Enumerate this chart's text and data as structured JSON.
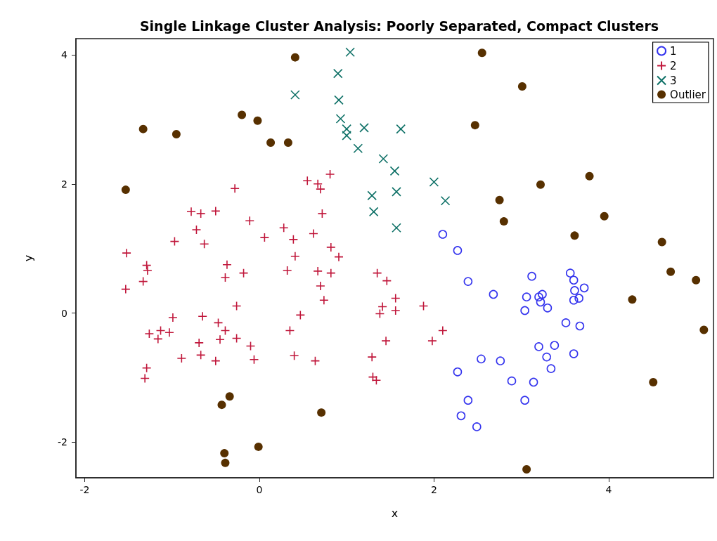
{
  "chart_data": {
    "type": "scatter",
    "title": "Single Linkage Cluster Analysis: Poorly Separated, Compact Clusters",
    "xlabel": "x",
    "ylabel": "y",
    "xlim": [
      -2.1,
      5.2
    ],
    "ylim": [
      -2.55,
      4.25
    ],
    "xticks": [
      -2,
      0,
      2,
      4
    ],
    "yticks": [
      -2,
      0,
      2,
      4
    ],
    "grid": false,
    "legend": "top right",
    "series": [
      {
        "name": "1",
        "color": "#3333ee",
        "marker": "circle_open",
        "x": [
          2.1,
          2.27,
          2.39,
          2.68,
          3.12,
          3.06,
          3.04,
          3.2,
          3.24,
          3.22,
          3.3,
          3.56,
          3.6,
          3.61,
          3.72,
          3.66,
          3.6,
          3.51,
          3.67,
          3.2,
          3.38,
          3.29,
          3.34,
          3.6,
          2.54,
          2.76,
          2.27,
          2.89,
          3.14,
          2.39,
          3.04,
          2.31,
          2.49
        ],
        "values": [
          1.22,
          0.97,
          0.49,
          0.29,
          0.57,
          0.25,
          0.04,
          0.25,
          0.29,
          0.17,
          0.08,
          0.62,
          0.51,
          0.35,
          0.39,
          0.23,
          0.2,
          -0.15,
          -0.2,
          -0.52,
          -0.5,
          -0.68,
          -0.86,
          -0.63,
          -0.71,
          -0.74,
          -0.91,
          -1.05,
          -1.07,
          -1.35,
          -1.35,
          -1.59,
          -1.76
        ]
      },
      {
        "name": "2",
        "color": "#c0163a",
        "marker": "plus",
        "x": [
          0.81,
          0.55,
          0.67,
          0.7,
          -0.28,
          -0.78,
          -0.67,
          -0.5,
          -0.11,
          0.72,
          -0.72,
          0.28,
          0.06,
          0.39,
          -0.63,
          -0.97,
          0.62,
          0.82,
          0.91,
          0.41,
          -1.52,
          -1.29,
          -1.28,
          -1.33,
          -1.53,
          -0.37,
          -0.39,
          -0.18,
          0.32,
          0.67,
          0.82,
          1.35,
          1.46,
          0.7,
          0.74,
          1.56,
          1.41,
          1.56,
          1.38,
          1.88,
          -0.26,
          -0.99,
          -0.65,
          0.47,
          -0.47,
          -0.39,
          -1.13,
          -1.03,
          -1.26,
          -1.16,
          0.35,
          2.1,
          -0.26,
          -0.45,
          -0.69,
          1.45,
          1.98,
          -0.1,
          -0.89,
          -0.67,
          -0.5,
          -0.06,
          0.4,
          0.64,
          1.29,
          -1.29,
          -1.31,
          1.3,
          1.34
        ],
        "values": [
          2.15,
          2.05,
          2.0,
          1.92,
          1.93,
          1.57,
          1.54,
          1.58,
          1.43,
          1.54,
          1.29,
          1.32,
          1.17,
          1.14,
          1.07,
          1.11,
          1.23,
          1.02,
          0.87,
          0.88,
          0.93,
          0.74,
          0.66,
          0.49,
          0.37,
          0.75,
          0.55,
          0.62,
          0.66,
          0.65,
          0.62,
          0.62,
          0.5,
          0.42,
          0.2,
          0.23,
          0.1,
          0.04,
          -0.01,
          0.11,
          0.11,
          -0.07,
          -0.05,
          -0.03,
          -0.15,
          -0.27,
          -0.27,
          -0.3,
          -0.32,
          -0.4,
          -0.27,
          -0.27,
          -0.39,
          -0.41,
          -0.46,
          -0.43,
          -0.43,
          -0.51,
          -0.7,
          -0.65,
          -0.74,
          -0.72,
          -0.66,
          -0.74,
          -0.68,
          -0.85,
          -1.01,
          -0.99,
          -1.04
        ]
      },
      {
        "name": "3",
        "color": "#0d7066",
        "marker": "cross",
        "x": [
          1.04,
          0.9,
          0.41,
          0.91,
          0.93,
          1.0,
          1.0,
          1.2,
          1.62,
          1.13,
          1.42,
          1.55,
          1.29,
          1.57,
          2.0,
          2.13,
          1.31,
          1.57
        ],
        "values": [
          4.04,
          3.71,
          3.38,
          3.3,
          3.01,
          2.85,
          2.75,
          2.87,
          2.85,
          2.55,
          2.39,
          2.2,
          1.82,
          1.88,
          2.03,
          1.74,
          1.57,
          1.32
        ]
      },
      {
        "name": "Outlier",
        "color": "#573000",
        "marker": "circle",
        "x": [
          0.41,
          2.55,
          3.01,
          -0.2,
          -0.02,
          -1.33,
          -0.95,
          0.13,
          0.33,
          2.47,
          3.78,
          3.22,
          -1.53,
          2.75,
          2.8,
          3.95,
          3.61,
          4.61,
          4.71,
          5.0,
          4.27,
          5.09,
          4.51,
          -0.34,
          -0.43,
          0.71,
          -0.01,
          -0.4,
          -0.39,
          3.06
        ],
        "values": [
          3.96,
          4.03,
          3.51,
          3.07,
          2.98,
          2.85,
          2.77,
          2.64,
          2.64,
          2.91,
          2.12,
          1.99,
          1.91,
          1.75,
          1.42,
          1.5,
          1.2,
          1.1,
          0.64,
          0.51,
          0.21,
          -0.26,
          -1.07,
          -1.29,
          -1.42,
          -1.54,
          -2.07,
          -2.17,
          -2.32,
          -2.42
        ]
      }
    ]
  }
}
